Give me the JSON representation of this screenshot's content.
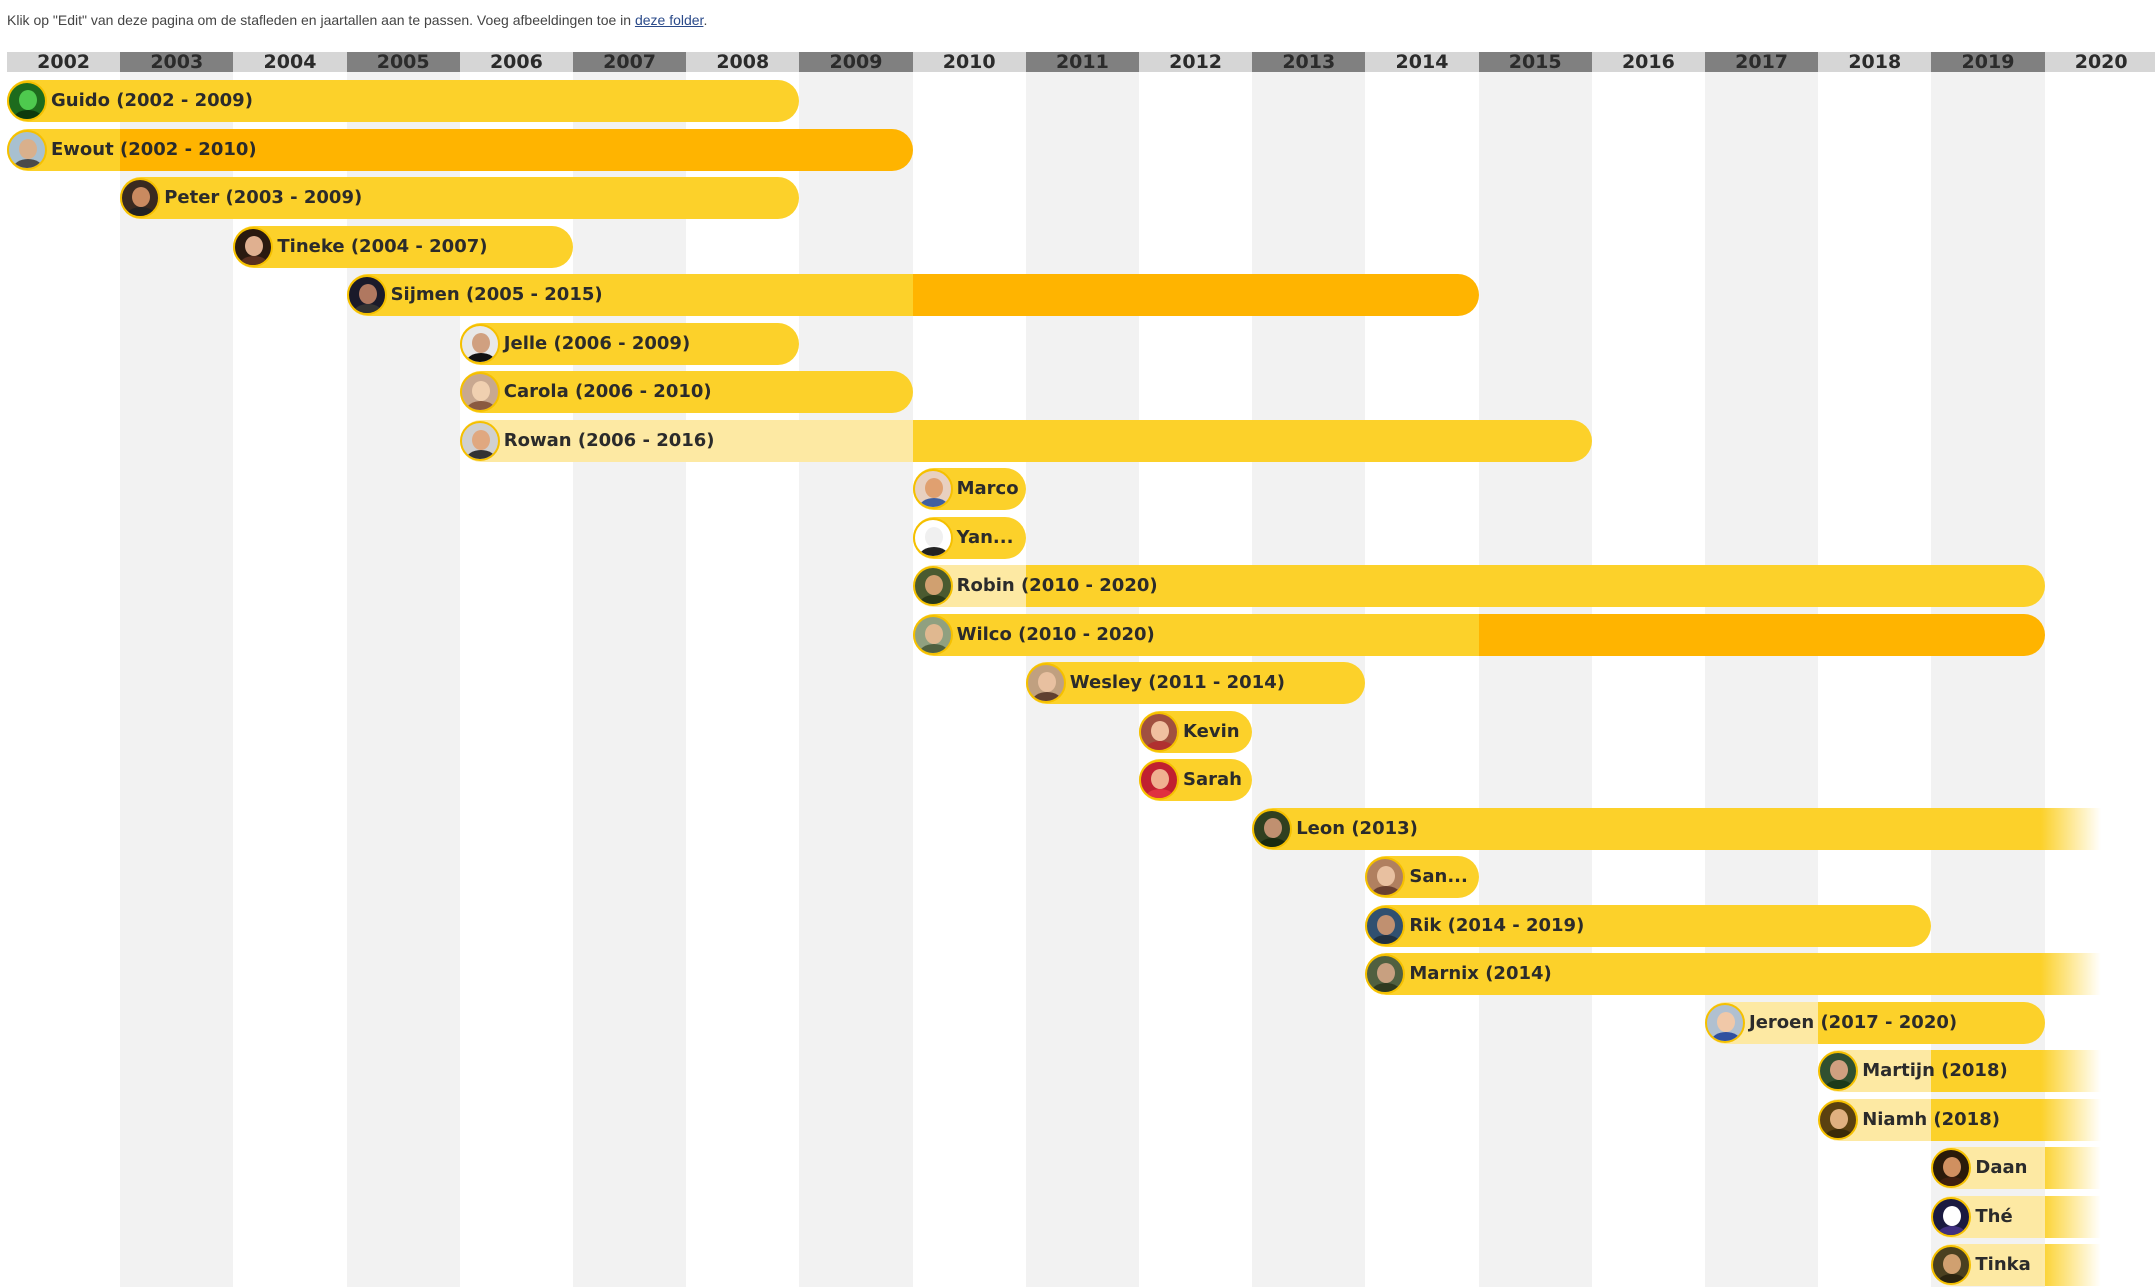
{
  "page": {
    "instruction_before_link": "Klik op \"Edit\" van deze pagina om de stafleden en jaartallen aan te passen. Voeg afbeeldingen toe in ",
    "instruction_link": "deze folder",
    "instruction_after_link": "."
  },
  "timeline": {
    "years": [
      "2002",
      "2003",
      "2004",
      "2005",
      "2006",
      "2007",
      "2008",
      "2009",
      "2010",
      "2011",
      "2012",
      "2013",
      "2014",
      "2015",
      "2016",
      "2017",
      "2018",
      "2019",
      "2020"
    ],
    "colors": {
      "header_light": "#d6d6d6",
      "header_dark": "#808080",
      "column_shade": "#f2f2f2",
      "bar_main": "#fcd12a",
      "bar_dark": "#ffb400",
      "bar_light": "#fde9a3"
    },
    "people": [
      {
        "label": "Guido (2002 - 2009)",
        "start": 2002,
        "end": 2009,
        "segments": [
          {
            "from": 2002,
            "to": 2009,
            "tone": "main"
          }
        ],
        "avatar": {
          "bg": "#1d6b1d",
          "face": "#4ec94e",
          "body": "#0d3a0d"
        }
      },
      {
        "label": "Ewout (2002 - 2010)",
        "start": 2002,
        "end": 2010,
        "segments": [
          {
            "from": 2002,
            "to": 2003,
            "tone": "main"
          },
          {
            "from": 2003,
            "to": 2010,
            "tone": "dark"
          }
        ],
        "avatar": {
          "bg": "#a8c0d0",
          "face": "#d9b08c",
          "body": "#4a4a4a"
        }
      },
      {
        "label": "Peter (2003 - 2009)",
        "start": 2003,
        "end": 2009,
        "segments": [
          {
            "from": 2003,
            "to": 2009,
            "tone": "main"
          }
        ],
        "avatar": {
          "bg": "#3a2a20",
          "face": "#c98a60",
          "body": "#222"
        }
      },
      {
        "label": "Tineke (2004 - 2007)",
        "start": 2004,
        "end": 2007,
        "segments": [
          {
            "from": 2004,
            "to": 2007,
            "tone": "main"
          }
        ],
        "avatar": {
          "bg": "#2a1a10",
          "face": "#e0b090",
          "body": "#5a3020"
        }
      },
      {
        "label": "Sijmen (2005 - 2015)",
        "start": 2005,
        "end": 2015,
        "segments": [
          {
            "from": 2005,
            "to": 2010,
            "tone": "main"
          },
          {
            "from": 2010,
            "to": 2015,
            "tone": "dark"
          }
        ],
        "avatar": {
          "bg": "#1a1a2a",
          "face": "#b07860",
          "body": "#333"
        }
      },
      {
        "label": "Jelle (2006 - 2009)",
        "start": 2006,
        "end": 2009,
        "segments": [
          {
            "from": 2006,
            "to": 2009,
            "tone": "main"
          }
        ],
        "avatar": {
          "bg": "#e8e8e8",
          "face": "#d0a080",
          "body": "#111"
        }
      },
      {
        "label": "Carola (2006 - 2010)",
        "start": 2006,
        "end": 2010,
        "segments": [
          {
            "from": 2006,
            "to": 2010,
            "tone": "main"
          }
        ],
        "avatar": {
          "bg": "#c8a890",
          "face": "#f0d0b0",
          "body": "#8a5a40"
        }
      },
      {
        "label": "Rowan (2006 - 2016)",
        "start": 2006,
        "end": 2016,
        "segments": [
          {
            "from": 2006,
            "to": 2010,
            "tone": "light"
          },
          {
            "from": 2010,
            "to": 2016,
            "tone": "main"
          }
        ],
        "avatar": {
          "bg": "#d0d0d0",
          "face": "#e0a880",
          "body": "#333"
        }
      },
      {
        "label": "Marco",
        "start": 2010,
        "end": 2011,
        "segments": [
          {
            "from": 2010,
            "to": 2011,
            "tone": "main"
          }
        ],
        "avatar": {
          "bg": "#e8d0c0",
          "face": "#e0a070",
          "body": "#4060a0"
        }
      },
      {
        "label": "Yan...",
        "start": 2010,
        "end": 2011,
        "segments": [
          {
            "from": 2010,
            "to": 2011,
            "tone": "main"
          }
        ],
        "avatar": {
          "bg": "#ffffff",
          "face": "#f0f0f0",
          "body": "#222"
        }
      },
      {
        "label": "Robin (2010 - 2020)",
        "start": 2010,
        "end": 2020,
        "segments": [
          {
            "from": 2010,
            "to": 2011,
            "tone": "light"
          },
          {
            "from": 2011,
            "to": 2020,
            "tone": "main"
          }
        ],
        "avatar": {
          "bg": "#4a5a30",
          "face": "#d0a070",
          "body": "#2a3a1a"
        }
      },
      {
        "label": "Wilco (2010 - 2020)",
        "start": 2010,
        "end": 2020,
        "segments": [
          {
            "from": 2010,
            "to": 2015,
            "tone": "main"
          },
          {
            "from": 2015,
            "to": 2020,
            "tone": "dark"
          }
        ],
        "avatar": {
          "bg": "#90a080",
          "face": "#e0b890",
          "body": "#506040"
        }
      },
      {
        "label": "Wesley (2011 - 2014)",
        "start": 2011,
        "end": 2014,
        "segments": [
          {
            "from": 2011,
            "to": 2014,
            "tone": "main"
          }
        ],
        "avatar": {
          "bg": "#c0a080",
          "face": "#e8c0a0",
          "body": "#604030"
        }
      },
      {
        "label": "Kevin",
        "start": 2012,
        "end": 2013,
        "segments": [
          {
            "from": 2012,
            "to": 2013,
            "tone": "main"
          }
        ],
        "avatar": {
          "bg": "#a05040",
          "face": "#f0c0a0",
          "body": "#b03030"
        }
      },
      {
        "label": "Sarah",
        "start": 2012,
        "end": 2013,
        "segments": [
          {
            "from": 2012,
            "to": 2013,
            "tone": "main"
          }
        ],
        "avatar": {
          "bg": "#c02030",
          "face": "#f0b090",
          "body": "#e03040"
        }
      },
      {
        "label": "Leon (2013)",
        "start": 2013,
        "end": 2020.5,
        "fade": true,
        "segments": [
          {
            "from": 2013,
            "to": 2020.5,
            "tone": "main"
          }
        ],
        "avatar": {
          "bg": "#304020",
          "face": "#c09070",
          "body": "#1a2a10"
        }
      },
      {
        "label": "San...",
        "start": 2014,
        "end": 2015,
        "segments": [
          {
            "from": 2014,
            "to": 2015,
            "tone": "main"
          }
        ],
        "avatar": {
          "bg": "#b08060",
          "face": "#e8c0a0",
          "body": "#6a4030"
        }
      },
      {
        "label": "Rik (2014 - 2019)",
        "start": 2014,
        "end": 2019,
        "segments": [
          {
            "from": 2014,
            "to": 2019,
            "tone": "main"
          }
        ],
        "avatar": {
          "bg": "#305070",
          "face": "#c09070",
          "body": "#203040"
        }
      },
      {
        "label": "Marnix (2014)",
        "start": 2014,
        "end": 2020.5,
        "fade": true,
        "segments": [
          {
            "from": 2014,
            "to": 2020.5,
            "tone": "main"
          }
        ],
        "avatar": {
          "bg": "#506040",
          "face": "#c8a080",
          "body": "#303a20"
        }
      },
      {
        "label": "Jeroen (2017 - 2020)",
        "start": 2017,
        "end": 2020,
        "segments": [
          {
            "from": 2017,
            "to": 2018,
            "tone": "light"
          },
          {
            "from": 2018,
            "to": 2020,
            "tone": "main"
          }
        ],
        "avatar": {
          "bg": "#b0c0d0",
          "face": "#f0c8a8",
          "body": "#3050a0"
        }
      },
      {
        "label": "Martijn (2018)",
        "start": 2018,
        "end": 2020.5,
        "fade": true,
        "segments": [
          {
            "from": 2018,
            "to": 2019,
            "tone": "light"
          },
          {
            "from": 2019,
            "to": 2020.5,
            "tone": "main"
          }
        ],
        "avatar": {
          "bg": "#305030",
          "face": "#d0a080",
          "body": "#1a3a1a"
        }
      },
      {
        "label": "Niamh (2018)",
        "start": 2018,
        "end": 2020.5,
        "fade": true,
        "segments": [
          {
            "from": 2018,
            "to": 2019,
            "tone": "light"
          },
          {
            "from": 2019,
            "to": 2020.5,
            "tone": "main"
          }
        ],
        "avatar": {
          "bg": "#5a4010",
          "face": "#e0b080",
          "body": "#3a2a08"
        }
      },
      {
        "label": "Daan",
        "start": 2019,
        "end": 2020.5,
        "fade": true,
        "segments": [
          {
            "from": 2019,
            "to": 2020,
            "tone": "light"
          },
          {
            "from": 2020,
            "to": 2020.5,
            "tone": "main"
          }
        ],
        "avatar": {
          "bg": "#2a1a0a",
          "face": "#d09060",
          "body": "#402010"
        }
      },
      {
        "label": "Thé",
        "start": 2019,
        "end": 2020.5,
        "fade": true,
        "segments": [
          {
            "from": 2019,
            "to": 2020,
            "tone": "light"
          },
          {
            "from": 2020,
            "to": 2020.5,
            "tone": "main"
          }
        ],
        "avatar": {
          "bg": "#1a1a40",
          "face": "#ffffff",
          "body": "#403080"
        }
      },
      {
        "label": "Tinka",
        "start": 2019,
        "end": 2020.5,
        "fade": true,
        "segments": [
          {
            "from": 2019,
            "to": 2020,
            "tone": "light"
          },
          {
            "from": 2020,
            "to": 2020.5,
            "tone": "main"
          }
        ],
        "avatar": {
          "bg": "#4a4020",
          "face": "#d0a070",
          "body": "#2a2410"
        }
      }
    ]
  }
}
